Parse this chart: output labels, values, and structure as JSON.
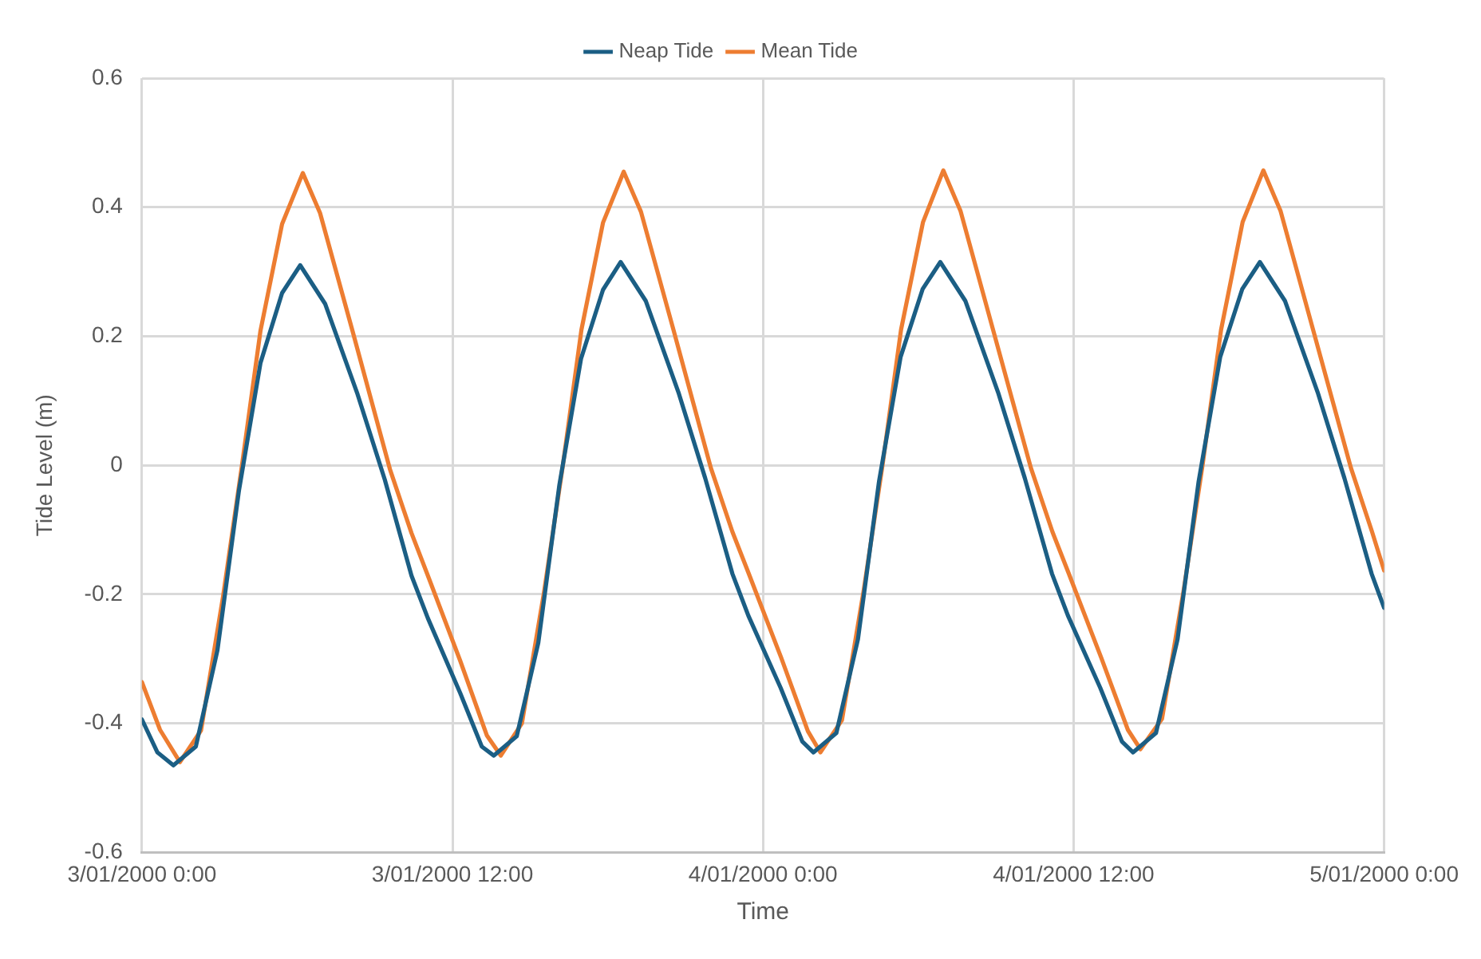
{
  "chart_data": {
    "type": "line",
    "xlabel": "Time",
    "ylabel": "Tide Level (m)",
    "legend": "top",
    "grid": true,
    "marker": "none",
    "line_style": "solid",
    "xlim": [
      "2000-01-03T00:00",
      "2000-01-05T00:00"
    ],
    "xticks": [
      {
        "value": "2000-01-03T00:00",
        "label": "3/01/2000 0:00"
      },
      {
        "value": "2000-01-03T12:00",
        "label": "3/01/2000 12:00"
      },
      {
        "value": "2000-01-04T00:00",
        "label": "4/01/2000 0:00"
      },
      {
        "value": "2000-01-04T12:00",
        "label": "4/01/2000 12:00"
      },
      {
        "value": "2000-01-05T00:00",
        "label": "5/01/2000 0:00"
      }
    ],
    "ylim": [
      -0.6,
      0.6
    ],
    "yticks": [
      -0.6,
      -0.4,
      -0.2,
      0,
      0.2,
      0.4,
      0.6
    ],
    "series": [
      {
        "name": "Neap Tide",
        "color": "#1b5e84",
        "x": [
          "2000-01-03T00:00",
          "2000-01-03T00:36",
          "2000-01-03T01:13",
          "2000-01-03T02:05",
          "2000-01-03T02:55",
          "2000-01-03T03:45",
          "2000-01-03T04:35",
          "2000-01-03T05:25",
          "2000-01-03T06:07",
          "2000-01-03T07:05",
          "2000-01-03T08:20",
          "2000-01-03T09:23",
          "2000-01-03T10:25",
          "2000-01-03T11:03",
          "2000-01-03T12:18",
          "2000-01-03T13:08",
          "2000-01-03T13:36",
          "2000-01-03T14:29",
          "2000-01-03T15:19",
          "2000-01-03T16:08",
          "2000-01-03T16:58",
          "2000-01-03T17:49",
          "2000-01-03T18:30",
          "2000-01-03T19:28",
          "2000-01-03T20:44",
          "2000-01-03T21:46",
          "2000-01-03T22:49",
          "2000-01-03T23:26",
          "2000-01-04T00:41",
          "2000-01-04T01:31",
          "2000-01-04T01:57",
          "2000-01-04T02:50",
          "2000-01-04T03:40",
          "2000-01-04T04:29",
          "2000-01-04T05:19",
          "2000-01-04T06:10",
          "2000-01-04T06:51",
          "2000-01-04T07:49",
          "2000-01-04T09:05",
          "2000-01-04T10:07",
          "2000-01-04T11:10",
          "2000-01-04T11:47",
          "2000-01-04T13:02",
          "2000-01-04T13:52",
          "2000-01-04T14:18",
          "2000-01-04T15:11",
          "2000-01-04T16:01",
          "2000-01-04T16:50",
          "2000-01-04T17:40",
          "2000-01-04T18:31",
          "2000-01-04T19:12",
          "2000-01-04T20:10",
          "2000-01-04T21:26",
          "2000-01-04T22:28",
          "2000-01-04T23:31",
          "2000-01-05T00:00"
        ],
        "values": [
          -0.394,
          -0.445,
          -0.465,
          -0.436,
          -0.287,
          -0.039,
          0.159,
          0.267,
          0.31,
          0.25,
          0.11,
          -0.022,
          -0.171,
          -0.237,
          -0.353,
          -0.436,
          -0.45,
          -0.42,
          -0.275,
          -0.03,
          0.165,
          0.272,
          0.315,
          0.255,
          0.113,
          -0.02,
          -0.168,
          -0.233,
          -0.345,
          -0.428,
          -0.445,
          -0.415,
          -0.27,
          -0.025,
          0.168,
          0.273,
          0.315,
          0.255,
          0.113,
          -0.02,
          -0.168,
          -0.233,
          -0.345,
          -0.428,
          -0.445,
          -0.415,
          -0.27,
          -0.025,
          0.168,
          0.273,
          0.315,
          0.255,
          0.113,
          -0.02,
          -0.168,
          -0.221
        ]
      },
      {
        "name": "Mean Tide",
        "color": "#ed7d31",
        "x": [
          "2000-01-03T00:00",
          "2000-01-03T00:42",
          "2000-01-03T01:28",
          "2000-01-03T02:17",
          "2000-01-03T03:08",
          "2000-01-03T03:52",
          "2000-01-03T04:35",
          "2000-01-03T05:25",
          "2000-01-03T06:13",
          "2000-01-03T06:53",
          "2000-01-03T08:08",
          "2000-01-03T09:35",
          "2000-01-03T10:25",
          "2000-01-03T11:03",
          "2000-01-03T12:18",
          "2000-01-03T13:20",
          "2000-01-03T13:52",
          "2000-01-03T14:41",
          "2000-01-03T15:32",
          "2000-01-03T16:16",
          "2000-01-03T16:59",
          "2000-01-03T17:49",
          "2000-01-03T18:37",
          "2000-01-03T19:17",
          "2000-01-03T20:32",
          "2000-01-03T21:59",
          "2000-01-03T22:49",
          "2000-01-03T23:27",
          "2000-01-04T00:42",
          "2000-01-04T01:44",
          "2000-01-04T02:13",
          "2000-01-04T03:03",
          "2000-01-04T03:53",
          "2000-01-04T04:37",
          "2000-01-04T05:20",
          "2000-01-04T06:11",
          "2000-01-04T06:58",
          "2000-01-04T07:38",
          "2000-01-04T08:53",
          "2000-01-04T10:21",
          "2000-01-04T11:11",
          "2000-01-04T11:49",
          "2000-01-04T13:04",
          "2000-01-04T14:06",
          "2000-01-04T14:35",
          "2000-01-04T15:25",
          "2000-01-04T16:15",
          "2000-01-04T16:59",
          "2000-01-04T17:42",
          "2000-01-04T18:32",
          "2000-01-04T19:20",
          "2000-01-04T20:00",
          "2000-01-04T21:15",
          "2000-01-04T22:43",
          "2000-01-04T23:32",
          "2000-01-05T00:00"
        ],
        "values": [
          -0.336,
          -0.41,
          -0.46,
          -0.411,
          -0.204,
          0.0,
          0.209,
          0.374,
          0.453,
          0.391,
          0.209,
          -0.006,
          -0.105,
          -0.171,
          -0.303,
          -0.419,
          -0.45,
          -0.4,
          -0.198,
          0.0,
          0.21,
          0.376,
          0.455,
          0.393,
          0.211,
          -0.004,
          -0.103,
          -0.168,
          -0.298,
          -0.412,
          -0.445,
          -0.395,
          -0.196,
          0.0,
          0.21,
          0.377,
          0.457,
          0.394,
          0.211,
          -0.004,
          -0.103,
          -0.168,
          -0.298,
          -0.41,
          -0.44,
          -0.393,
          -0.195,
          0.0,
          0.21,
          0.377,
          0.457,
          0.394,
          0.211,
          -0.004,
          -0.103,
          -0.163
        ]
      }
    ]
  }
}
